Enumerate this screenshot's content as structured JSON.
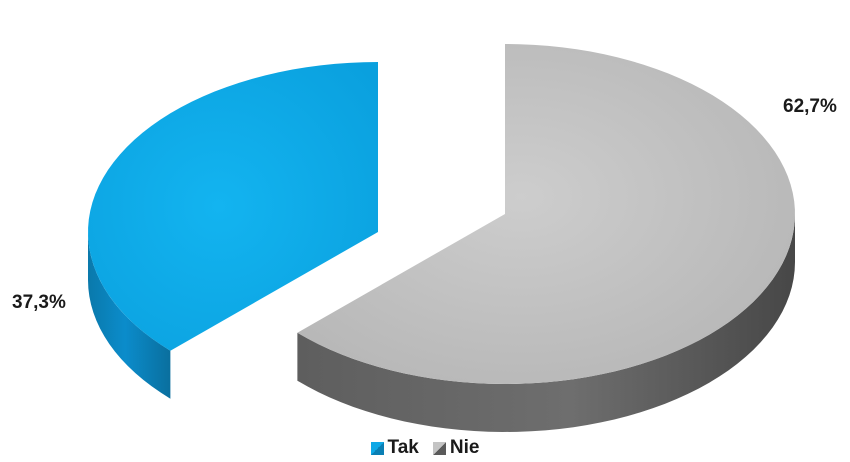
{
  "chart_data": {
    "type": "pie",
    "categories": [
      "Tak",
      "Nie"
    ],
    "values": [
      37.3,
      62.7
    ],
    "labels": [
      "37,3%",
      "62,7%"
    ],
    "colors": {
      "Tak": {
        "top": "#0fa8e6",
        "side": "#0a7fb4"
      },
      "Nie": {
        "top": "#c4c4c4",
        "side": "#5a5a5a"
      }
    },
    "three_d": true,
    "exploded": true,
    "legend_position": "bottom",
    "legend": [
      "Tak",
      "Nie"
    ]
  }
}
